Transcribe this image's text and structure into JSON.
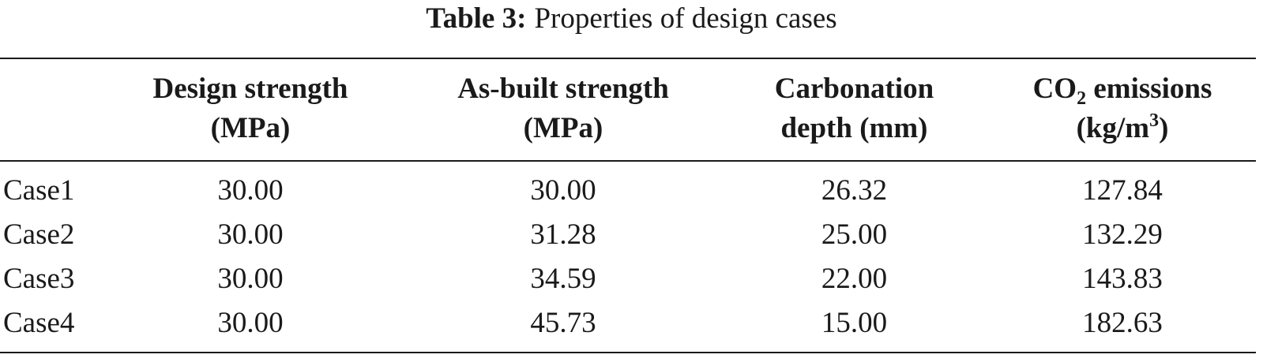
{
  "caption": {
    "label": "Table 3:",
    "text": "Properties of design cases"
  },
  "headers": {
    "design_strength": {
      "line1": "Design strength",
      "line2": "(MPa)"
    },
    "asbuilt_strength": {
      "line1": "As-built strength",
      "line2": "(MPa)"
    },
    "carbonation_depth": {
      "line1": "Carbonation",
      "line2": "depth (mm)"
    },
    "co2_emissions": {
      "co": "CO",
      "sub": "2",
      "rest": " emissions",
      "unit_open": "(kg/m",
      "sup": "3",
      "unit_close": ")"
    }
  },
  "rows": [
    {
      "case": "Case1",
      "design": "30.00",
      "asbuilt": "30.00",
      "depth": "26.32",
      "co2": "127.84"
    },
    {
      "case": "Case2",
      "design": "30.00",
      "asbuilt": "31.28",
      "depth": "25.00",
      "co2": "132.29"
    },
    {
      "case": "Case3",
      "design": "30.00",
      "asbuilt": "34.59",
      "depth": "22.00",
      "co2": "143.83"
    },
    {
      "case": "Case4",
      "design": "30.00",
      "asbuilt": "45.73",
      "depth": "15.00",
      "co2": "182.63"
    }
  ]
}
